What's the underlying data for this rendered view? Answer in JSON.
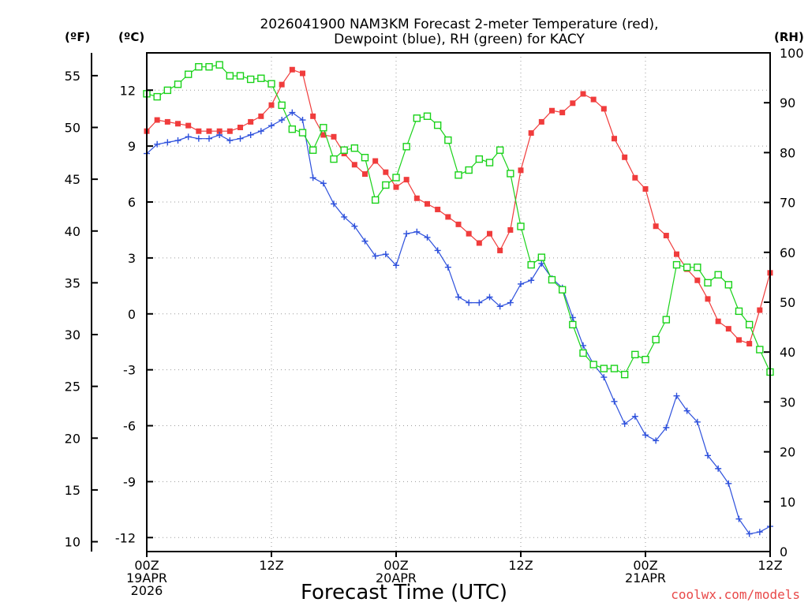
{
  "chart_data": {
    "type": "line",
    "title_lines": [
      "2026041900 NAM3KM Forecast 2-meter Temperature (red),",
      "Dewpoint (blue), RH (green) for KACY"
    ],
    "xlabel": "Forecast Time (UTC)",
    "credit": "coolwx.com/models",
    "left_axis_units": {
      "fahrenheit": "(ºF)",
      "celsius": "(ºC)"
    },
    "right_axis_unit": "(RH)",
    "fahrenheit_ticks": [
      10,
      15,
      20,
      25,
      30,
      35,
      40,
      45,
      50,
      55
    ],
    "fahrenheit_range": [
      9.05,
      57.2
    ],
    "celsius_ticks": [
      -12,
      -9,
      -6,
      -3,
      0,
      3,
      6,
      9,
      12
    ],
    "celsius_range": [
      -12.75,
      14.0
    ],
    "rh_ticks": [
      0,
      10,
      20,
      30,
      40,
      50,
      60,
      70,
      80,
      90,
      100
    ],
    "rh_range": [
      0,
      100
    ],
    "x_range_hours": [
      0,
      60
    ],
    "x_ticks": [
      {
        "hour": 0,
        "lines": [
          "00Z",
          "19APR",
          "2026"
        ]
      },
      {
        "hour": 12,
        "lines": [
          "12Z"
        ]
      },
      {
        "hour": 24,
        "lines": [
          "00Z",
          "20APR"
        ]
      },
      {
        "hour": 36,
        "lines": [
          "12Z"
        ]
      },
      {
        "hour": 48,
        "lines": [
          "00Z",
          "21APR"
        ]
      },
      {
        "hour": 60,
        "lines": [
          "12Z"
        ]
      }
    ],
    "hours": [
      0,
      1,
      2,
      3,
      4,
      5,
      6,
      7,
      8,
      9,
      10,
      11,
      12,
      13,
      14,
      15,
      16,
      17,
      18,
      19,
      20,
      21,
      22,
      23,
      24,
      25,
      26,
      27,
      28,
      29,
      30,
      31,
      32,
      33,
      34,
      35,
      36,
      37,
      38,
      39,
      40,
      41,
      42,
      43,
      44,
      45,
      46,
      47,
      48,
      49,
      50,
      51,
      52,
      53,
      54,
      55,
      56,
      57,
      58,
      59,
      60
    ],
    "series": [
      {
        "name": "2-meter Temperature",
        "unit": "°C",
        "color": "#f03c3c",
        "marker": "filled-square",
        "values": [
          9.8,
          10.4,
          10.3,
          10.2,
          10.1,
          9.8,
          9.8,
          9.8,
          9.8,
          10.0,
          10.3,
          10.6,
          11.2,
          12.3,
          13.1,
          12.9,
          10.6,
          9.6,
          9.5,
          8.6,
          8.0,
          7.5,
          8.2,
          7.6,
          6.8,
          7.2,
          6.2,
          5.9,
          5.6,
          5.2,
          4.8,
          4.3,
          3.8,
          4.3,
          3.4,
          4.5,
          7.7,
          9.7,
          10.3,
          10.9,
          10.8,
          11.3,
          11.8,
          11.5,
          11.0,
          9.4,
          8.4,
          7.3,
          6.7,
          4.7,
          4.2,
          3.2,
          2.4,
          1.8,
          0.8,
          -0.4,
          -0.8,
          -1.4,
          -1.6,
          0.2,
          2.2
        ]
      },
      {
        "name": "Dewpoint",
        "unit": "°C",
        "color": "#2d50dc",
        "marker": "plus",
        "values": [
          8.6,
          9.1,
          9.2,
          9.3,
          9.5,
          9.4,
          9.4,
          9.6,
          9.3,
          9.4,
          9.6,
          9.8,
          10.1,
          10.4,
          10.8,
          10.4,
          7.3,
          7.0,
          5.9,
          5.2,
          4.7,
          3.9,
          3.1,
          3.2,
          2.6,
          4.3,
          4.4,
          4.1,
          3.4,
          2.5,
          0.9,
          0.6,
          0.6,
          0.9,
          0.4,
          0.6,
          1.6,
          1.8,
          2.7,
          1.9,
          1.4,
          -0.2,
          -1.7,
          -2.7,
          -3.4,
          -4.7,
          -5.9,
          -5.5,
          -6.5,
          -6.8,
          -6.1,
          -4.4,
          -5.2,
          -5.8,
          -7.6,
          -8.3,
          -9.1,
          -11.0,
          -11.8,
          -11.7,
          -11.4
        ]
      },
      {
        "name": "RH",
        "unit": "%",
        "color": "#19d219",
        "marker": "open-square",
        "values": [
          91.8,
          91.2,
          92.5,
          93.7,
          95.7,
          97.2,
          97.2,
          97.6,
          95.4,
          95.4,
          94.7,
          94.9,
          93.8,
          89.5,
          84.7,
          84.0,
          80.5,
          85.0,
          78.7,
          80.5,
          80.9,
          79.0,
          70.5,
          73.5,
          75.0,
          81.2,
          86.9,
          87.3,
          85.5,
          82.5,
          75.5,
          76.5,
          78.7,
          78.0,
          80.5,
          75.8,
          65.2,
          57.5,
          59.0,
          54.5,
          52.5,
          45.5,
          39.8,
          37.5,
          36.7,
          36.7,
          35.5,
          39.5,
          38.5,
          42.5,
          46.5,
          57.5,
          57.0,
          57.0,
          53.9,
          55.5,
          53.5,
          48.2,
          45.5,
          40.5,
          36.0
        ]
      }
    ]
  }
}
